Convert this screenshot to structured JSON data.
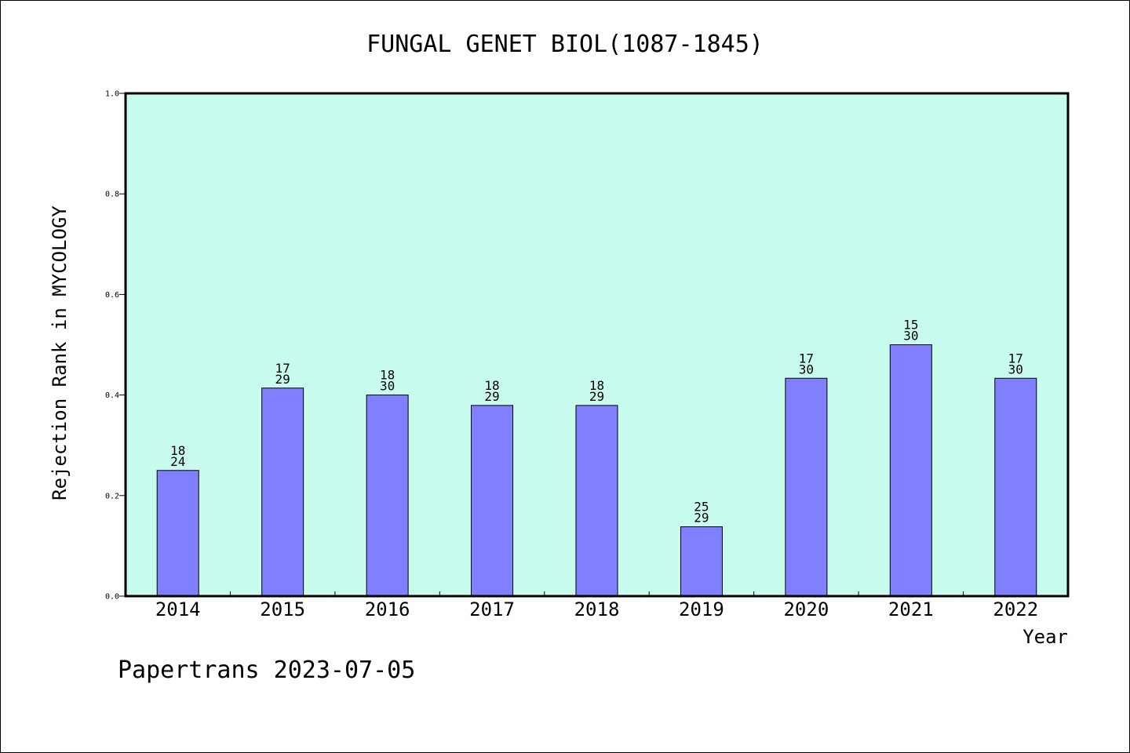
{
  "chart_data": {
    "type": "bar",
    "title": "FUNGAL GENET BIOL(1087-1845)",
    "xlabel": "Year",
    "ylabel": "Rejection Rank in MYCOLOGY",
    "ylim": [
      0,
      1.0
    ],
    "yticks": [
      "0.0",
      "0.2",
      "0.4",
      "0.6",
      "0.8",
      "1.0"
    ],
    "grid": false,
    "categories": [
      "2014",
      "2015",
      "2016",
      "2017",
      "2018",
      "2019",
      "2020",
      "2021",
      "2022"
    ],
    "values": [
      0.25,
      0.4138,
      0.4,
      0.3793,
      0.3793,
      0.1379,
      0.4333,
      0.5,
      0.4333
    ],
    "rank_labels": [
      {
        "rank": "18",
        "total": "24"
      },
      {
        "rank": "17",
        "total": "29"
      },
      {
        "rank": "18",
        "total": "30"
      },
      {
        "rank": "18",
        "total": "29"
      },
      {
        "rank": "18",
        "total": "29"
      },
      {
        "rank": "25",
        "total": "29"
      },
      {
        "rank": "17",
        "total": "30"
      },
      {
        "rank": "15",
        "total": "30"
      },
      {
        "rank": "17",
        "total": "30"
      }
    ],
    "colors": {
      "plot_background": "#c8fcee",
      "bar_fill": "#8080ff",
      "bar_stroke": "#000000",
      "axis": "#000000"
    }
  },
  "footer": "Papertrans 2023-07-05"
}
